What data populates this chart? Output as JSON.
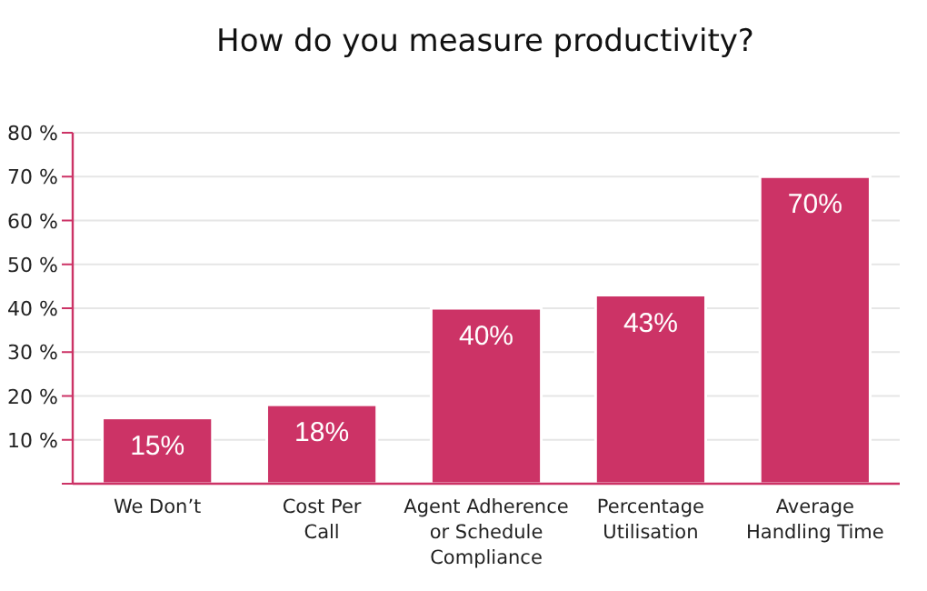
{
  "chart_data": {
    "type": "bar",
    "title": "How do you measure productivity?",
    "categories": [
      "We Don’t",
      "Cost Per\nCall",
      "Agent Adherence\nor Schedule\nCompliance",
      "Percentage\nUtilisation",
      "Average\nHandling Time"
    ],
    "values": [
      15,
      18,
      40,
      43,
      70
    ],
    "value_labels": [
      "15%",
      "18%",
      "40%",
      "43%",
      "70%"
    ],
    "color": "#cc3366",
    "ylim": [
      0,
      80
    ],
    "yticks": [
      {
        "value": 0,
        "label": null
      },
      {
        "value": 10,
        "label": "10 %"
      },
      {
        "value": 20,
        "label": "20 %"
      },
      {
        "value": 30,
        "label": "30 %"
      },
      {
        "value": 40,
        "label": "40 %"
      },
      {
        "value": 50,
        "label": "50 %"
      },
      {
        "value": 60,
        "label": "60 %"
      },
      {
        "value": 70,
        "label": "70 %"
      },
      {
        "value": 80,
        "label": "80 %"
      }
    ],
    "grid": "y"
  }
}
